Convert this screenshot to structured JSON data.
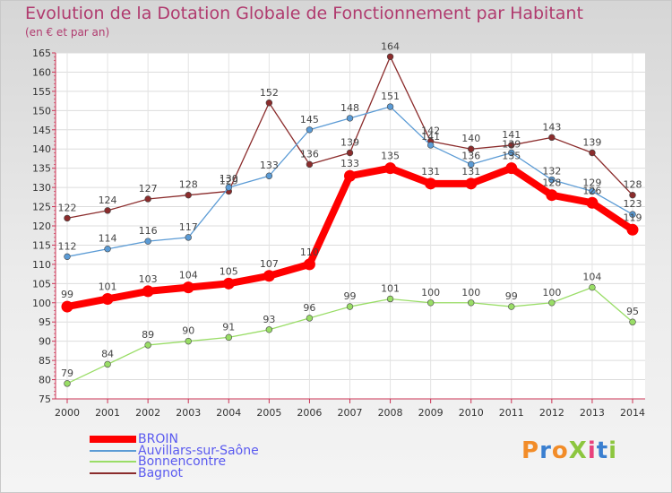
{
  "header": {
    "title": "Evolution de la Dotation Globale de Fonctionnement par Habitant",
    "subtitle": "(en € et par an)"
  },
  "brand": {
    "text": "ProXiti",
    "colors": [
      "#f28c28",
      "#3a7fd0",
      "#f28c28",
      "#8cc63f",
      "#e8427c",
      "#3a7fd0",
      "#8cc63f"
    ]
  },
  "chart_data": {
    "type": "line",
    "x": [
      "2000",
      "2001",
      "2002",
      "2003",
      "2004",
      "2005",
      "2006",
      "2007",
      "2008",
      "2009",
      "2010",
      "2011",
      "2012",
      "2013",
      "2014"
    ],
    "ylim": [
      75,
      165
    ],
    "yticks": [
      75,
      80,
      85,
      90,
      95,
      100,
      105,
      110,
      115,
      120,
      125,
      130,
      135,
      140,
      145,
      150,
      155,
      160,
      165
    ],
    "grid": true,
    "legend_position": "bottom-left",
    "series": [
      {
        "name": "BROIN",
        "color": "#ff0000",
        "values": [
          99,
          101,
          103,
          104,
          105,
          107,
          110,
          133,
          135,
          131,
          131,
          135,
          128,
          126,
          119
        ]
      },
      {
        "name": "Auvillars-sur-Saône",
        "color": "#5b9bd5",
        "values": [
          112,
          114,
          116,
          117,
          130,
          133,
          145,
          148,
          151,
          141,
          136,
          139,
          132,
          129,
          123
        ]
      },
      {
        "name": "Bonnencontre",
        "color": "#99dd66",
        "values": [
          79,
          84,
          89,
          90,
          91,
          93,
          96,
          99,
          101,
          100,
          100,
          99,
          100,
          104,
          95
        ]
      },
      {
        "name": "Bagnot",
        "color": "#8b2c2c",
        "values": [
          122,
          124,
          127,
          128,
          129,
          152,
          136,
          139,
          164,
          142,
          140,
          141,
          143,
          139,
          128
        ]
      }
    ]
  }
}
